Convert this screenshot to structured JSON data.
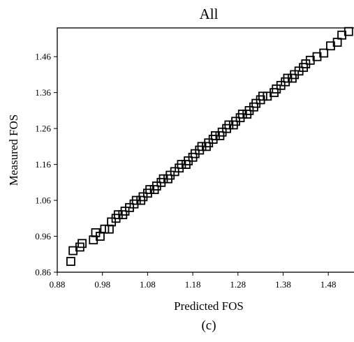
{
  "chart_data": {
    "type": "scatter",
    "title": "All",
    "xlabel": "Predicted FOS",
    "ylabel": "Measured FOS",
    "caption": "(c)",
    "xlim": [
      0.88,
      1.54
    ],
    "ylim": [
      0.86,
      1.54
    ],
    "xticks": [
      "0.88",
      "0.98",
      "1.08",
      "1.18",
      "1.28",
      "1.38",
      "1.48"
    ],
    "yticks": [
      "0.86",
      "0.96",
      "1.06",
      "1.16",
      "1.26",
      "1.36",
      "1.46"
    ],
    "grid": false,
    "marker": "hollow-square",
    "points": [
      {
        "x": 0.91,
        "y": 0.89
      },
      {
        "x": 0.915,
        "y": 0.92
      },
      {
        "x": 0.93,
        "y": 0.93
      },
      {
        "x": 0.935,
        "y": 0.94
      },
      {
        "x": 0.96,
        "y": 0.95
      },
      {
        "x": 0.965,
        "y": 0.97
      },
      {
        "x": 0.975,
        "y": 0.96
      },
      {
        "x": 0.985,
        "y": 0.98
      },
      {
        "x": 0.995,
        "y": 0.98
      },
      {
        "x": 1.0,
        "y": 1.0
      },
      {
        "x": 1.01,
        "y": 1.01
      },
      {
        "x": 1.015,
        "y": 1.02
      },
      {
        "x": 1.025,
        "y": 1.02
      },
      {
        "x": 1.03,
        "y": 1.03
      },
      {
        "x": 1.04,
        "y": 1.04
      },
      {
        "x": 1.05,
        "y": 1.05
      },
      {
        "x": 1.055,
        "y": 1.06
      },
      {
        "x": 1.065,
        "y": 1.06
      },
      {
        "x": 1.07,
        "y": 1.07
      },
      {
        "x": 1.08,
        "y": 1.08
      },
      {
        "x": 1.085,
        "y": 1.09
      },
      {
        "x": 1.095,
        "y": 1.09
      },
      {
        "x": 1.1,
        "y": 1.1
      },
      {
        "x": 1.11,
        "y": 1.11
      },
      {
        "x": 1.115,
        "y": 1.12
      },
      {
        "x": 1.125,
        "y": 1.12
      },
      {
        "x": 1.13,
        "y": 1.13
      },
      {
        "x": 1.14,
        "y": 1.14
      },
      {
        "x": 1.15,
        "y": 1.15
      },
      {
        "x": 1.155,
        "y": 1.16
      },
      {
        "x": 1.165,
        "y": 1.16
      },
      {
        "x": 1.17,
        "y": 1.17
      },
      {
        "x": 1.18,
        "y": 1.18
      },
      {
        "x": 1.185,
        "y": 1.19
      },
      {
        "x": 1.195,
        "y": 1.2
      },
      {
        "x": 1.2,
        "y": 1.21
      },
      {
        "x": 1.21,
        "y": 1.21
      },
      {
        "x": 1.215,
        "y": 1.22
      },
      {
        "x": 1.225,
        "y": 1.23
      },
      {
        "x": 1.23,
        "y": 1.24
      },
      {
        "x": 1.24,
        "y": 1.24
      },
      {
        "x": 1.245,
        "y": 1.25
      },
      {
        "x": 1.255,
        "y": 1.26
      },
      {
        "x": 1.26,
        "y": 1.27
      },
      {
        "x": 1.27,
        "y": 1.27
      },
      {
        "x": 1.275,
        "y": 1.28
      },
      {
        "x": 1.285,
        "y": 1.29
      },
      {
        "x": 1.29,
        "y": 1.3
      },
      {
        "x": 1.3,
        "y": 1.3
      },
      {
        "x": 1.305,
        "y": 1.31
      },
      {
        "x": 1.315,
        "y": 1.32
      },
      {
        "x": 1.32,
        "y": 1.33
      },
      {
        "x": 1.33,
        "y": 1.34
      },
      {
        "x": 1.335,
        "y": 1.35
      },
      {
        "x": 1.345,
        "y": 1.35
      },
      {
        "x": 1.36,
        "y": 1.36
      },
      {
        "x": 1.365,
        "y": 1.37
      },
      {
        "x": 1.375,
        "y": 1.38
      },
      {
        "x": 1.385,
        "y": 1.39
      },
      {
        "x": 1.39,
        "y": 1.4
      },
      {
        "x": 1.4,
        "y": 1.4
      },
      {
        "x": 1.405,
        "y": 1.41
      },
      {
        "x": 1.415,
        "y": 1.42
      },
      {
        "x": 1.425,
        "y": 1.43
      },
      {
        "x": 1.43,
        "y": 1.44
      },
      {
        "x": 1.44,
        "y": 1.45
      },
      {
        "x": 1.455,
        "y": 1.46
      },
      {
        "x": 1.47,
        "y": 1.47
      },
      {
        "x": 1.485,
        "y": 1.49
      },
      {
        "x": 1.5,
        "y": 1.5
      },
      {
        "x": 1.51,
        "y": 1.52
      },
      {
        "x": 1.525,
        "y": 1.53
      }
    ]
  }
}
